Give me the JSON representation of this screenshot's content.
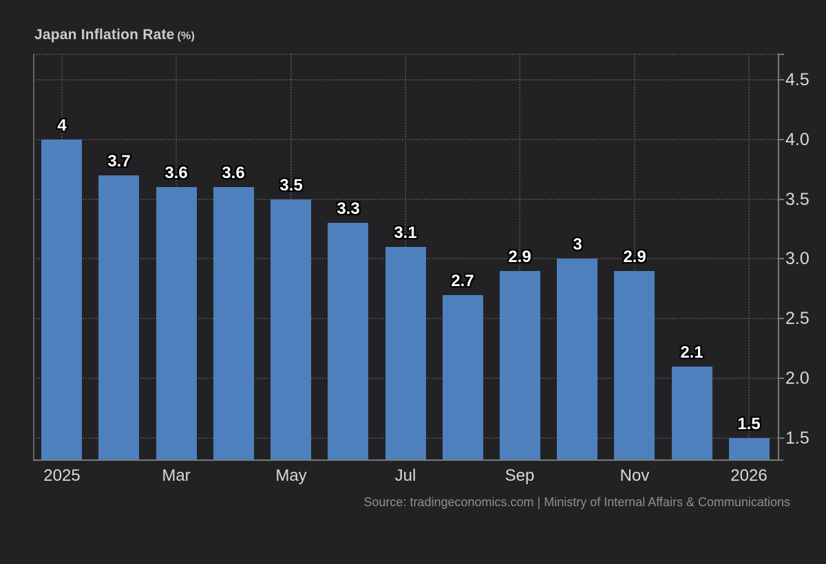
{
  "chart": {
    "title": "Japan Inflation Rate",
    "unit": "(%)",
    "source": "Source: tradingeconomics.com | Ministry of Internal Affairs & Communications"
  },
  "chart_data": {
    "type": "bar",
    "title": "Japan Inflation Rate (%)",
    "categories": [
      "2025-01",
      "2025-02",
      "2025-03",
      "2025-04",
      "2025-05",
      "2025-06",
      "2025-07",
      "2025-08",
      "2025-09",
      "2025-10",
      "2025-11",
      "2025-12",
      "2026-01"
    ],
    "values": [
      4,
      3.7,
      3.6,
      3.6,
      3.5,
      3.3,
      3.1,
      2.7,
      2.9,
      3,
      2.9,
      2.1,
      1.5
    ],
    "bar_labels": [
      "4",
      "3.7",
      "3.6",
      "3.6",
      "3.5",
      "3.3",
      "3.1",
      "2.7",
      "2.9",
      "3",
      "2.9",
      "2.1",
      "1.5"
    ],
    "x_ticks": [
      {
        "index": 0,
        "label": "2025"
      },
      {
        "index": 2,
        "label": "Mar"
      },
      {
        "index": 4,
        "label": "May"
      },
      {
        "index": 6,
        "label": "Jul"
      },
      {
        "index": 8,
        "label": "Sep"
      },
      {
        "index": 10,
        "label": "Nov"
      },
      {
        "index": 12,
        "label": "2026"
      }
    ],
    "y_ticks": [
      {
        "value": 1.5,
        "label": "1.5"
      },
      {
        "value": 2,
        "label": "2.0"
      },
      {
        "value": 2.5,
        "label": "2.5"
      },
      {
        "value": 3,
        "label": "3.0"
      },
      {
        "value": 3.5,
        "label": "3.5"
      },
      {
        "value": 4,
        "label": "4.0"
      },
      {
        "value": 4.5,
        "label": "4.5"
      }
    ],
    "ylim": [
      1.32,
      4.72
    ],
    "y_axis_side": "right",
    "grid": "dotted",
    "legend": "none",
    "colors": {
      "bar": "#4e80bd",
      "background": "#222224",
      "grid": "#4b4b4b",
      "axis": "#7a7a7a",
      "axis_dim": "#646464",
      "tick_label": "#d9d9d9",
      "data_label": "#ffffff",
      "title": "#cccccc",
      "source": "#8f8f8f"
    }
  }
}
